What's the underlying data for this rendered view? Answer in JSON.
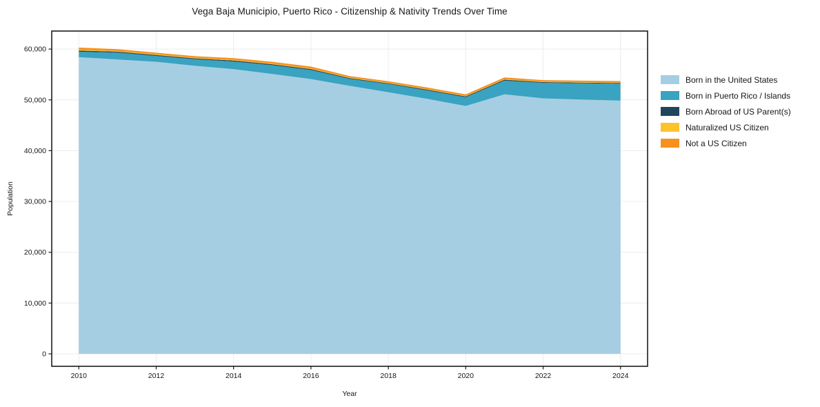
{
  "chart": {
    "title": "Vega Baja Municipio, Puerto Rico - Citizenship & Nativity Trends Over Time",
    "xlabel": "Year",
    "ylabel": "Population"
  },
  "chart_data": {
    "type": "area",
    "stacked": true,
    "title": "Vega Baja Municipio, Puerto Rico - Citizenship & Nativity Trends Over Time",
    "xlabel": "Year",
    "ylabel": "Population",
    "x": [
      2010,
      2011,
      2012,
      2013,
      2014,
      2015,
      2016,
      2017,
      2018,
      2019,
      2020,
      2021,
      2022,
      2023,
      2024
    ],
    "series": [
      {
        "name": "Born in the United States",
        "color": "#a6cee3",
        "values": [
          58400,
          57950,
          57500,
          56700,
          56050,
          55100,
          54100,
          52750,
          51500,
          50200,
          48800,
          51100,
          50300,
          50050,
          49850
        ]
      },
      {
        "name": "Born in Puerto Rico / Islands",
        "color": "#39a3c1",
        "values": [
          1080,
          1350,
          1150,
          1300,
          1500,
          1730,
          1780,
          1370,
          1620,
          1660,
          1710,
          2690,
          3050,
          3200,
          3320
        ]
      },
      {
        "name": "Born Abroad of US Parent(s)",
        "color": "#21465b",
        "values": [
          230,
          190,
          180,
          170,
          190,
          185,
          190,
          160,
          150,
          160,
          160,
          180,
          150,
          150,
          150
        ]
      },
      {
        "name": "Naturalized US Citizen",
        "color": "#fcc32d",
        "values": [
          140,
          120,
          110,
          105,
          115,
          115,
          115,
          100,
          95,
          100,
          100,
          110,
          95,
          95,
          90
        ]
      },
      {
        "name": "Not a US Citizen",
        "color": "#f5921e",
        "values": [
          440,
          370,
          350,
          335,
          375,
          370,
          375,
          320,
          295,
          320,
          320,
          350,
          295,
          295,
          300
        ]
      }
    ],
    "totals": [
      60290,
      59980,
      59290,
      58610,
      58230,
      57500,
      56560,
      54700,
      53660,
      52440,
      51090,
      54430,
      53890,
      53790,
      53710
    ],
    "x_ticks": [
      "2010",
      "2012",
      "2014",
      "2016",
      "2018",
      "2020",
      "2022",
      "2024"
    ],
    "x_tick_values": [
      2010,
      2012,
      2014,
      2016,
      2018,
      2020,
      2022,
      2024
    ],
    "y_ticks": [
      "0",
      "10,000",
      "20,000",
      "30,000",
      "40,000",
      "50,000",
      "60,000"
    ],
    "y_tick_values": [
      0,
      10000,
      20000,
      30000,
      40000,
      50000,
      60000
    ],
    "xlim": [
      2009.3,
      2024.7
    ],
    "ylim": [
      -2450,
      63550
    ],
    "grid": true,
    "grid_color": "#ececec",
    "frame_color": "#1a1a1a",
    "legend_position": "right-outside"
  }
}
